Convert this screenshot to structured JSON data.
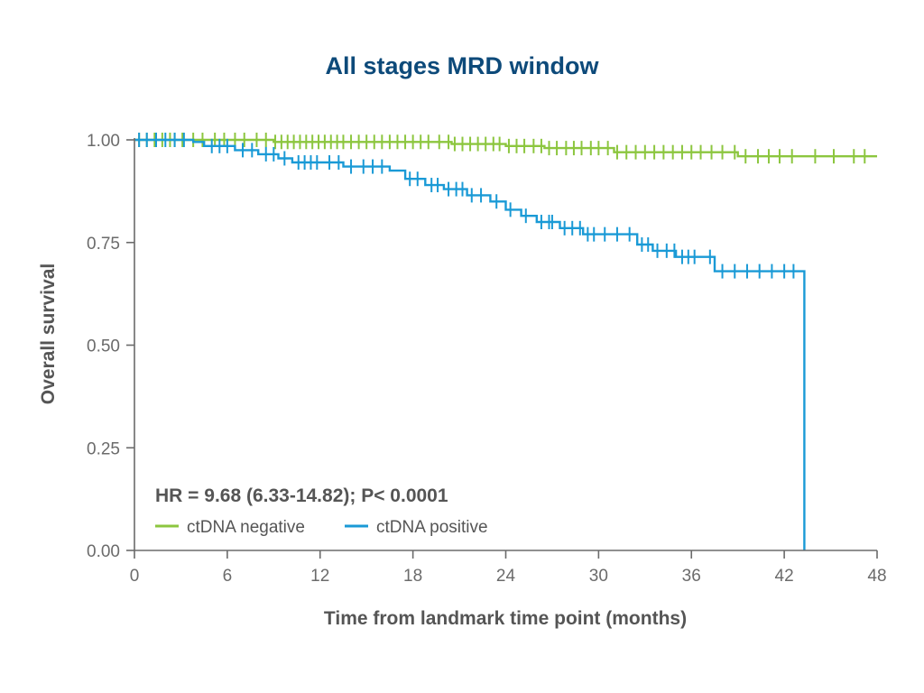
{
  "chart_data": {
    "type": "line",
    "title": "All stages MRD window",
    "xlabel": "Time from landmark time point (months)",
    "ylabel": "Overall survival",
    "xlim": [
      0,
      48
    ],
    "ylim": [
      0,
      1
    ],
    "x_ticks": [
      "0",
      "6",
      "12",
      "18",
      "24",
      "30",
      "36",
      "42",
      "48"
    ],
    "y_ticks": [
      "0.00",
      "0.25",
      "0.50",
      "0.75",
      "1.00"
    ],
    "grid": false,
    "annotation": "HR = 9.68 (6.33-14.82); P< 0.0001",
    "legend_position": "bottom-left",
    "series": [
      {
        "name": "ctDNA negative",
        "color": "#8cc63f",
        "step_points": [
          [
            0,
            1.0
          ],
          [
            9,
            1.0
          ],
          [
            9,
            0.995
          ],
          [
            20.5,
            0.995
          ],
          [
            20.5,
            0.99
          ],
          [
            24,
            0.99
          ],
          [
            24,
            0.985
          ],
          [
            26.5,
            0.985
          ],
          [
            26.5,
            0.98
          ],
          [
            31,
            0.98
          ],
          [
            31,
            0.97
          ],
          [
            39,
            0.97
          ],
          [
            39,
            0.96
          ],
          [
            48,
            0.96
          ]
        ],
        "censor_times": [
          0.3,
          0.8,
          1.3,
          1.8,
          2.3,
          2.6,
          3.1,
          3.8,
          4.4,
          5.2,
          5.8,
          6.5,
          7.1,
          7.9,
          8.5,
          9.1,
          9.5,
          9.9,
          10.3,
          10.7,
          11.1,
          11.5,
          11.9,
          12.3,
          12.7,
          13.1,
          13.5,
          14.0,
          14.5,
          15.0,
          15.5,
          16.0,
          16.5,
          17.0,
          17.5,
          18.0,
          18.5,
          19.0,
          19.7,
          20.3,
          20.7,
          21.2,
          21.7,
          22.2,
          22.7,
          23.2,
          23.6,
          24.2,
          24.7,
          25.2,
          25.8,
          26.3,
          26.8,
          27.3,
          27.9,
          28.4,
          28.9,
          29.5,
          30.0,
          30.6,
          31.2,
          31.8,
          32.4,
          33.0,
          33.6,
          34.2,
          34.8,
          35.4,
          36.0,
          36.6,
          37.3,
          38.0,
          38.8,
          39.5,
          40.3,
          41.0,
          41.7,
          42.5,
          44.0,
          45.2,
          46.5,
          47.2
        ]
      },
      {
        "name": "ctDNA positive",
        "color": "#1a9ad6",
        "step_points": [
          [
            0,
            1.0
          ],
          [
            3.8,
            1.0
          ],
          [
            3.8,
            0.995
          ],
          [
            4.5,
            0.995
          ],
          [
            4.5,
            0.985
          ],
          [
            6.5,
            0.985
          ],
          [
            6.5,
            0.975
          ],
          [
            8,
            0.975
          ],
          [
            8,
            0.965
          ],
          [
            9.3,
            0.965
          ],
          [
            9.3,
            0.955
          ],
          [
            10.2,
            0.955
          ],
          [
            10.2,
            0.945
          ],
          [
            13.5,
            0.945
          ],
          [
            13.5,
            0.935
          ],
          [
            16.5,
            0.935
          ],
          [
            16.5,
            0.925
          ],
          [
            17.5,
            0.925
          ],
          [
            17.5,
            0.905
          ],
          [
            18.8,
            0.905
          ],
          [
            18.8,
            0.89
          ],
          [
            20,
            0.89
          ],
          [
            20,
            0.88
          ],
          [
            21.5,
            0.88
          ],
          [
            21.5,
            0.865
          ],
          [
            23,
            0.865
          ],
          [
            23,
            0.85
          ],
          [
            24,
            0.85
          ],
          [
            24,
            0.83
          ],
          [
            25,
            0.83
          ],
          [
            25,
            0.815
          ],
          [
            26,
            0.815
          ],
          [
            26,
            0.8
          ],
          [
            27.5,
            0.8
          ],
          [
            27.5,
            0.785
          ],
          [
            29,
            0.785
          ],
          [
            29,
            0.77
          ],
          [
            32.5,
            0.77
          ],
          [
            32.5,
            0.745
          ],
          [
            33.5,
            0.745
          ],
          [
            33.5,
            0.73
          ],
          [
            35,
            0.73
          ],
          [
            35,
            0.715
          ],
          [
            37.5,
            0.715
          ],
          [
            37.5,
            0.68
          ],
          [
            43.3,
            0.68
          ],
          [
            43.3,
            0.0
          ]
        ],
        "censor_times": [
          0.3,
          0.8,
          1.4,
          2.0,
          2.6,
          3.2,
          5.0,
          5.5,
          6.0,
          7.0,
          7.6,
          8.5,
          9.0,
          9.7,
          10.6,
          11.0,
          11.4,
          11.8,
          12.6,
          13.2,
          14.0,
          14.8,
          15.4,
          16.0,
          17.8,
          18.3,
          19.2,
          19.6,
          20.3,
          20.8,
          21.2,
          21.8,
          22.4,
          23.4,
          24.3,
          25.3,
          26.3,
          26.8,
          27.0,
          27.8,
          28.3,
          28.8,
          29.3,
          29.7,
          30.4,
          31.2,
          32.0,
          32.8,
          33.2,
          33.8,
          34.4,
          34.9,
          35.4,
          35.8,
          36.2,
          37.2,
          38.0,
          38.8,
          39.6,
          40.4,
          41.2,
          42.0,
          42.6
        ]
      }
    ]
  }
}
